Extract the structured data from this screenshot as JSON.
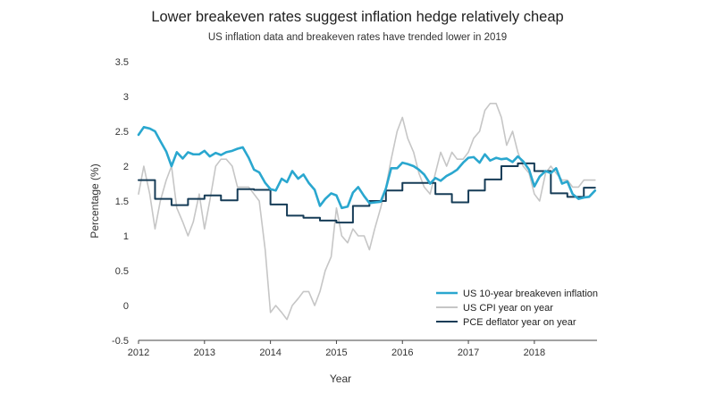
{
  "chart_data": {
    "type": "line",
    "title": "Lower breakeven rates suggest inflation hedge relatively cheap",
    "subtitle": "US inflation data and breakeven rates have trended lower in 2019",
    "xlabel": "Year",
    "ylabel": "Percentage (%)",
    "xlim": [
      2012,
      2018.95
    ],
    "ylim": [
      -0.5,
      3.5
    ],
    "xticks": [
      "2012",
      "2013",
      "2014",
      "2015",
      "2016",
      "2017",
      "2018"
    ],
    "xtick_values": [
      2012,
      2013,
      2014,
      2015,
      2016,
      2017,
      2018
    ],
    "yticks": [
      "3.5",
      "3",
      "2.5",
      "2",
      "1.5",
      "1",
      "0.5",
      "0",
      "-0.5"
    ],
    "ytick_values": [
      3.5,
      3,
      2.5,
      2,
      1.5,
      1,
      0.5,
      0,
      -0.5
    ],
    "grid": false,
    "legend_position": "bottom-right",
    "series": [
      {
        "name": "US 10-year breakeven inflation",
        "color": "#2aa7cf",
        "style": "line",
        "x": [
          2012.0,
          2012.08,
          2012.17,
          2012.25,
          2012.33,
          2012.42,
          2012.5,
          2012.58,
          2012.67,
          2012.75,
          2012.83,
          2012.92,
          2013.0,
          2013.08,
          2013.17,
          2013.25,
          2013.33,
          2013.42,
          2013.5,
          2013.58,
          2013.67,
          2013.75,
          2013.83,
          2013.92,
          2014.0,
          2014.08,
          2014.17,
          2014.25,
          2014.33,
          2014.42,
          2014.5,
          2014.58,
          2014.67,
          2014.75,
          2014.83,
          2014.92,
          2015.0,
          2015.08,
          2015.17,
          2015.25,
          2015.33,
          2015.42,
          2015.5,
          2015.58,
          2015.67,
          2015.75,
          2015.83,
          2015.92,
          2016.0,
          2016.08,
          2016.17,
          2016.25,
          2016.33,
          2016.42,
          2016.5,
          2016.58,
          2016.67,
          2016.75,
          2016.83,
          2016.92,
          2017.0,
          2017.08,
          2017.17,
          2017.25,
          2017.33,
          2017.42,
          2017.5,
          2017.58,
          2017.67,
          2017.75,
          2017.83,
          2017.92,
          2018.0,
          2018.08,
          2018.17,
          2018.25,
          2018.33,
          2018.42,
          2018.5,
          2018.58,
          2018.67,
          2018.75,
          2018.83,
          2018.92
        ],
        "y": [
          2.45,
          2.56,
          2.54,
          2.5,
          2.36,
          2.21,
          2.0,
          2.2,
          2.11,
          2.2,
          2.17,
          2.17,
          2.22,
          2.14,
          2.19,
          2.16,
          2.2,
          2.22,
          2.25,
          2.27,
          2.12,
          1.95,
          1.91,
          1.76,
          1.67,
          1.65,
          1.82,
          1.77,
          1.93,
          1.82,
          1.88,
          1.76,
          1.66,
          1.43,
          1.53,
          1.61,
          1.58,
          1.4,
          1.42,
          1.62,
          1.7,
          1.57,
          1.47,
          1.48,
          1.49,
          1.68,
          1.97,
          1.97,
          2.05,
          2.03,
          2.0,
          1.95,
          1.88,
          1.75,
          1.83,
          1.79,
          1.86,
          1.9,
          1.95,
          2.05,
          2.12,
          2.13,
          2.05,
          2.17,
          2.08,
          2.12,
          2.1,
          2.11,
          2.06,
          2.14,
          2.07,
          1.95,
          1.71,
          1.85,
          1.93,
          1.9,
          1.97,
          1.75,
          1.78,
          1.6,
          1.53,
          1.55,
          1.56,
          1.65
        ]
      },
      {
        "name": "US CPI year on year",
        "color": "#c6c6c6",
        "style": "line",
        "x": [
          2012.0,
          2012.08,
          2012.17,
          2012.25,
          2012.33,
          2012.42,
          2012.5,
          2012.58,
          2012.67,
          2012.75,
          2012.83,
          2012.92,
          2013.0,
          2013.08,
          2013.17,
          2013.25,
          2013.33,
          2013.42,
          2013.5,
          2013.58,
          2013.67,
          2013.75,
          2013.83,
          2013.92,
          2014.0,
          2014.08,
          2014.17,
          2014.25,
          2014.33,
          2014.42,
          2014.5,
          2014.58,
          2014.67,
          2014.75,
          2014.83,
          2014.92,
          2015.0,
          2015.08,
          2015.17,
          2015.25,
          2015.33,
          2015.42,
          2015.5,
          2015.58,
          2015.67,
          2015.75,
          2015.83,
          2015.92,
          2016.0,
          2016.08,
          2016.17,
          2016.25,
          2016.33,
          2016.42,
          2016.5,
          2016.58,
          2016.67,
          2016.75,
          2016.83,
          2016.92,
          2017.0,
          2017.08,
          2017.17,
          2017.25,
          2017.33,
          2017.42,
          2017.5,
          2017.58,
          2017.67,
          2017.75,
          2017.83,
          2017.92,
          2018.0,
          2018.08,
          2018.17,
          2018.25,
          2018.33,
          2018.42,
          2018.5,
          2018.58,
          2018.67,
          2018.75,
          2018.83,
          2018.92
        ],
        "y": [
          1.6,
          2.0,
          1.6,
          1.1,
          1.5,
          1.8,
          2.0,
          1.4,
          1.2,
          1.0,
          1.2,
          1.6,
          1.1,
          1.5,
          2.0,
          2.1,
          2.1,
          2.0,
          1.7,
          1.7,
          1.7,
          1.6,
          1.5,
          0.8,
          -0.1,
          0.0,
          -0.1,
          -0.2,
          0.0,
          0.1,
          0.2,
          0.2,
          0.0,
          0.2,
          0.5,
          0.7,
          1.4,
          1.0,
          0.9,
          1.1,
          1.0,
          1.0,
          0.8,
          1.1,
          1.4,
          1.7,
          2.1,
          2.5,
          2.7,
          2.4,
          2.2,
          1.9,
          1.7,
          1.6,
          1.9,
          2.2,
          2.0,
          2.2,
          2.1,
          2.1,
          2.2,
          2.4,
          2.5,
          2.8,
          2.9,
          2.9,
          2.7,
          2.3,
          2.5,
          2.2,
          2.0,
          1.9,
          1.6,
          1.5,
          1.9,
          2.0,
          1.9,
          1.8,
          1.8,
          1.7,
          1.7,
          1.8,
          1.8,
          1.8
        ]
      },
      {
        "name": "PCE deflator year on year",
        "color": "#163c57",
        "style": "step",
        "x": [
          2012.0,
          2012.08,
          2012.17,
          2012.25,
          2012.33,
          2012.42,
          2012.5,
          2012.58,
          2012.67,
          2012.75,
          2012.83,
          2012.92,
          2013.0,
          2013.08,
          2013.17,
          2013.25,
          2013.33,
          2013.42,
          2013.5,
          2013.58,
          2013.67,
          2013.75,
          2013.83,
          2013.92,
          2014.0,
          2014.08,
          2014.17,
          2014.25,
          2014.33,
          2014.42,
          2014.5,
          2014.58,
          2014.67,
          2014.75,
          2014.83,
          2014.92,
          2015.0,
          2015.08,
          2015.17,
          2015.25,
          2015.33,
          2015.42,
          2015.5,
          2015.58,
          2015.67,
          2015.75,
          2015.83,
          2015.92,
          2016.0,
          2016.08,
          2016.17,
          2016.25,
          2016.33,
          2016.42,
          2016.5,
          2016.58,
          2016.67,
          2016.75,
          2016.83,
          2016.92,
          2017.0,
          2017.08,
          2017.17,
          2017.25,
          2017.33,
          2017.42,
          2017.5,
          2017.58,
          2017.67,
          2017.75,
          2017.83,
          2017.92,
          2018.0,
          2018.08,
          2018.17,
          2018.25,
          2018.33,
          2018.42,
          2018.5,
          2018.58,
          2018.67,
          2018.75,
          2018.83,
          2018.92
        ],
        "y": [
          1.8,
          1.8,
          1.8,
          1.53,
          1.53,
          1.53,
          1.44,
          1.44,
          1.44,
          1.53,
          1.53,
          1.53,
          1.58,
          1.58,
          1.58,
          1.51,
          1.51,
          1.51,
          1.67,
          1.67,
          1.67,
          1.66,
          1.66,
          1.66,
          1.45,
          1.45,
          1.45,
          1.29,
          1.29,
          1.29,
          1.26,
          1.26,
          1.26,
          1.22,
          1.22,
          1.22,
          1.19,
          1.19,
          1.19,
          1.43,
          1.43,
          1.43,
          1.5,
          1.5,
          1.5,
          1.65,
          1.65,
          1.65,
          1.76,
          1.76,
          1.76,
          1.76,
          1.76,
          1.76,
          1.6,
          1.6,
          1.6,
          1.48,
          1.48,
          1.48,
          1.65,
          1.65,
          1.65,
          1.81,
          1.81,
          1.81,
          2.0,
          2.0,
          2.0,
          2.04,
          2.04,
          2.04,
          1.93,
          1.93,
          1.93,
          1.61,
          1.61,
          1.61,
          1.56,
          1.56,
          1.56,
          1.69,
          1.69,
          1.69
        ]
      }
    ]
  }
}
